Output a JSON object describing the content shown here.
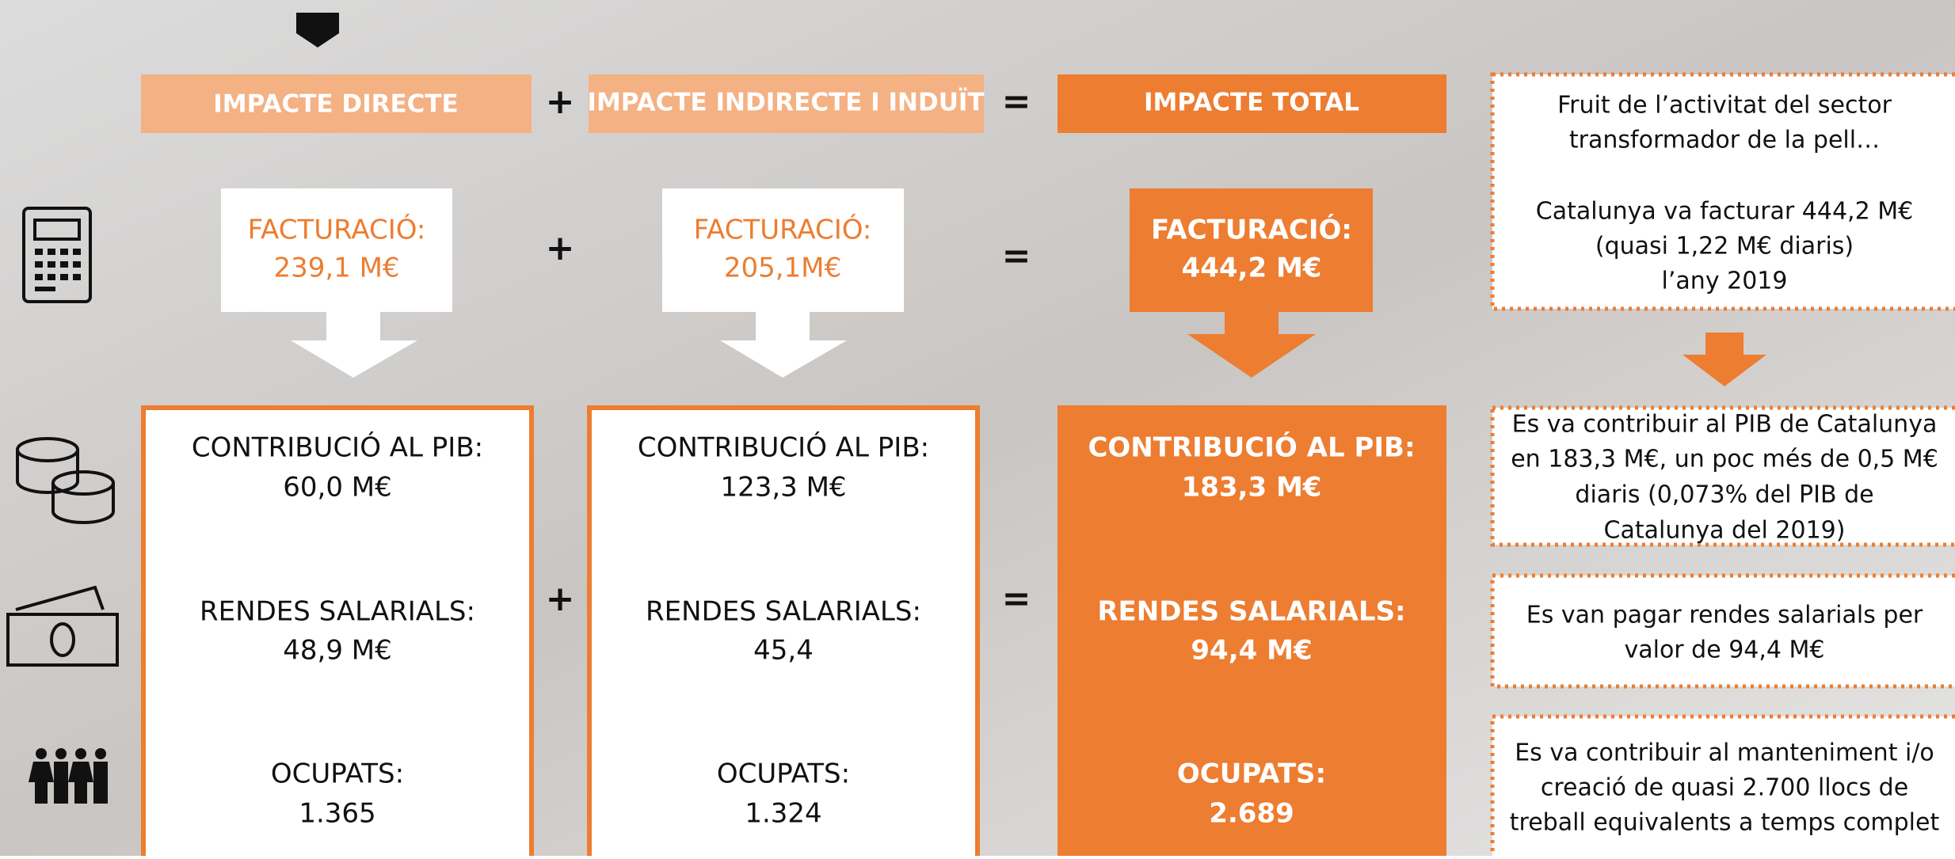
{
  "headers": {
    "direct": "IMPACTE DIRECTE",
    "indirect": "IMPACTE INDIRECTE I INDUÏT",
    "total": "IMPACTE TOTAL"
  },
  "operators": {
    "plus": "+",
    "equals": "="
  },
  "turnover": {
    "direct": [
      "FACTURACIÓ:",
      "239,1 M€"
    ],
    "indirect": [
      "FACTURACIÓ:",
      "205,1M€"
    ],
    "total": [
      "FACTURACIÓ:",
      "444,2 M€"
    ]
  },
  "details": {
    "direct": [
      "CONTRIBUCIÓ AL PIB:",
      "60,0 M€",
      "RENDES SALARIALS:",
      "48,9 M€",
      "OCUPATS:",
      "1.365"
    ],
    "indirect": [
      "CONTRIBUCIÓ AL PIB:",
      "123,3 M€",
      "RENDES SALARIALS:",
      "45,4",
      "OCUPATS:",
      "1.324"
    ],
    "total": [
      "CONTRIBUCIÓ AL PIB:",
      "183,3 M€",
      "RENDES SALARIALS:",
      "94,4  M€",
      "OCUPATS:",
      "2.689"
    ]
  },
  "notes": [
    [
      "Fruit de l’activitat del sector",
      "transformador de la pell…",
      "Catalunya va facturar 444,2 M€",
      "(quasi 1,22 M€ diaris)",
      "l’any 2019"
    ],
    [
      "Es va contribuir al PIB de Catalunya",
      "en 183,3 M€, un poc més de 0,5 M€",
      "diaris (0,073% del PIB de",
      "Catalunya del 2019)"
    ],
    [
      "Es van pagar rendes salarials per",
      "valor de 94,4 M€"
    ],
    [
      "Es va contribuir al manteniment i/o",
      "creació de quasi 2.700 llocs de",
      "treball equivalents a temps complet"
    ]
  ]
}
